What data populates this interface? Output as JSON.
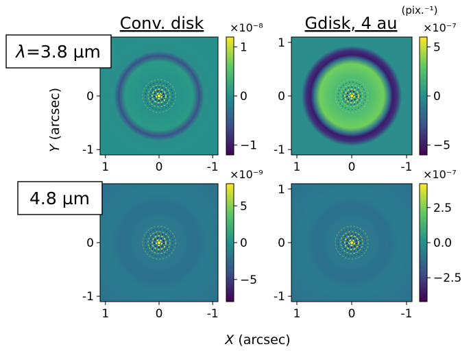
{
  "figure": {
    "colorbar_unit": "(pix.⁻¹)",
    "xlabel_var": "X",
    "xlabel_unit": " (arcsec)",
    "ylabel_var": "Y",
    "ylabel_unit": " (arcsec)",
    "row_labels": [
      {
        "prefix": "λ",
        "text": "=3.8 µm"
      },
      {
        "prefix": "",
        "text": "4.8 µm"
      }
    ],
    "colormap": "viridis",
    "colormap_stops": [
      "#440154",
      "#3b528b",
      "#21918c",
      "#5ec962",
      "#fde725"
    ]
  },
  "chart_data": [
    {
      "type": "heatmap",
      "panel": "top-left",
      "title": "Conv. disk",
      "x_ticks": [
        "1",
        "0",
        "-1"
      ],
      "y_ticks": [
        "1",
        "0",
        "-1"
      ],
      "x_range": [
        1.1,
        -1.1
      ],
      "y_range": [
        -1.1,
        1.1
      ],
      "colorbar": {
        "multiplier": "×10⁻⁸",
        "ticks": [
          "1",
          "0",
          "−1"
        ],
        "tick_values": [
          1,
          0,
          -1
        ],
        "range": [
          -1.2,
          1.2
        ]
      },
      "features": {
        "ring_radius_arcsec": 0.75,
        "ring_sign": "negative",
        "central_speckles": true
      }
    },
    {
      "type": "heatmap",
      "panel": "top-right",
      "title": "Gdisk, 4 au",
      "x_ticks": [
        "1",
        "0",
        "-1"
      ],
      "y_ticks": [
        "1",
        "0",
        "-1"
      ],
      "x_range": [
        1.1,
        -1.1
      ],
      "y_range": [
        -1.1,
        1.1
      ],
      "colorbar": {
        "multiplier": "×10⁻⁷",
        "ticks": [
          "5",
          "0",
          "−5"
        ],
        "tick_values": [
          5,
          0,
          -5
        ],
        "range": [
          -6,
          6
        ]
      },
      "features": {
        "ring_radius_arcsec": 0.75,
        "ring_sign": "negative",
        "central_speckles": true
      }
    },
    {
      "type": "heatmap",
      "panel": "bottom-left",
      "title": "",
      "x_ticks": [
        "1",
        "0",
        "-1"
      ],
      "y_ticks": [
        "1",
        "0",
        "-1"
      ],
      "x_range": [
        1.1,
        -1.1
      ],
      "y_range": [
        -1.1,
        1.1
      ],
      "colorbar": {
        "multiplier": "×10⁻⁹",
        "ticks": [
          "5",
          "0",
          "−5"
        ],
        "tick_values": [
          5,
          0,
          -5
        ],
        "range": [
          -8,
          8
        ]
      },
      "features": {
        "ring_radius_arcsec": 0.85,
        "ring_sign": "faint",
        "central_speckles": true
      }
    },
    {
      "type": "heatmap",
      "panel": "bottom-right",
      "title": "",
      "x_ticks": [
        "1",
        "0",
        "-1"
      ],
      "y_ticks": [
        "1",
        "0",
        "-1"
      ],
      "x_range": [
        1.1,
        -1.1
      ],
      "y_range": [
        -1.1,
        1.1
      ],
      "colorbar": {
        "multiplier": "×10⁻⁷",
        "ticks": [
          "2.5",
          "0.0",
          "−2.5"
        ],
        "tick_values": [
          2.5,
          0,
          -2.5
        ],
        "range": [
          -4.2,
          4.2
        ]
      },
      "features": {
        "ring_radius_arcsec": 0.8,
        "ring_sign": "faint",
        "central_speckles": true
      }
    }
  ]
}
